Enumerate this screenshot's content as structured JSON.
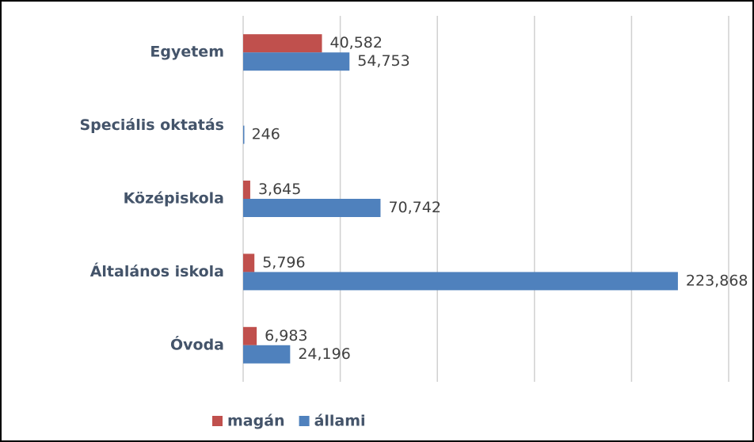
{
  "chart_data": {
    "type": "hbar",
    "categories": [
      "Egyetem",
      "Speciális oktatás",
      "Középiskola",
      "Általános iskola",
      "Óvoda"
    ],
    "series": [
      {
        "name": "magán",
        "color": "#c0504d",
        "values": [
          40582,
          null,
          3645,
          5796,
          6983
        ],
        "value_labels": [
          "40,582",
          null,
          "3,645",
          "5,796",
          "6,983"
        ]
      },
      {
        "name": "állami",
        "color": "#4f81bd",
        "values": [
          54753,
          246,
          70742,
          223868,
          24196
        ],
        "value_labels": [
          "54,753",
          "246",
          "70,742",
          "223,868",
          "24,196"
        ]
      }
    ],
    "xlim": [
      0,
      250000
    ],
    "xticks": [
      0,
      50000,
      100000,
      150000,
      200000,
      250000
    ],
    "grid": true,
    "legend": "bottom"
  }
}
